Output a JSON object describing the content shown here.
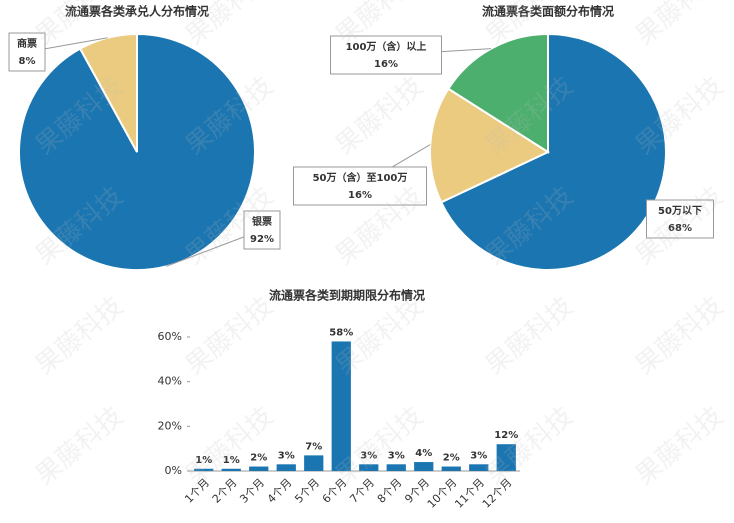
{
  "watermark": "果藤科技",
  "chart_data": [
    {
      "type": "pie",
      "title": "流通票各类承兑人分布情况",
      "categories": [
        "银票",
        "商票"
      ],
      "values": [
        92,
        8
      ],
      "value_labels": [
        "92%",
        "8%"
      ],
      "colors": [
        "#1a75b0",
        "#ebcb80"
      ]
    },
    {
      "type": "pie",
      "title": "流通票各类面额分布情况",
      "categories": [
        "50万以下",
        "50万（含）至100万",
        "100万（含）以上"
      ],
      "values": [
        68,
        16,
        16
      ],
      "value_labels": [
        "68%",
        "16%",
        "16%"
      ],
      "colors": [
        "#1a75b0",
        "#ebcb80",
        "#4caf6e"
      ]
    },
    {
      "type": "bar",
      "title": "流通票各类到期期限分布情况",
      "categories": [
        "1个月",
        "2个月",
        "3个月",
        "4个月",
        "5个月",
        "6个月",
        "7个月",
        "8个月",
        "9个月",
        "10个月",
        "11个月",
        "12个月"
      ],
      "values": [
        1,
        1,
        2,
        3,
        7,
        58,
        3,
        3,
        4,
        2,
        3,
        12
      ],
      "value_labels": [
        "1%",
        "1%",
        "2%",
        "3%",
        "7%",
        "58%",
        "3%",
        "3%",
        "4%",
        "2%",
        "3%",
        "12%"
      ],
      "color": "#1a75b0",
      "ylim": [
        0,
        60
      ],
      "yticks": [
        {
          "value": 0,
          "label": "0%"
        },
        {
          "value": 20,
          "label": "20%"
        },
        {
          "value": 40,
          "label": "40%"
        },
        {
          "value": 60,
          "label": "60%"
        }
      ]
    }
  ]
}
